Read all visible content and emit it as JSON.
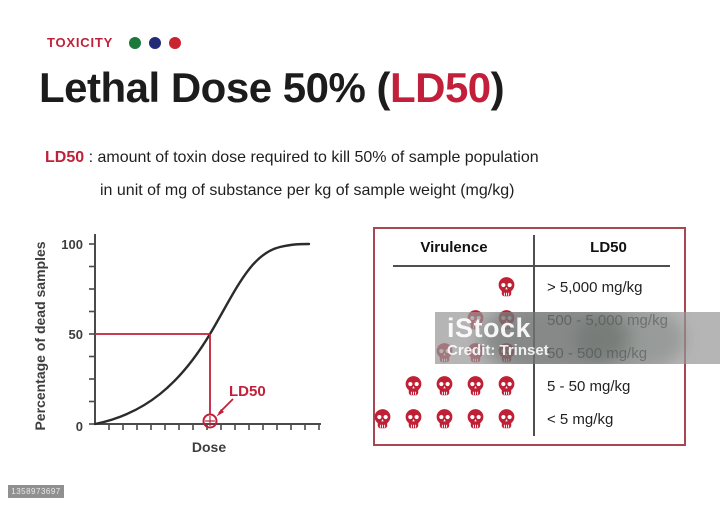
{
  "theme": {
    "accent": "#c2203a",
    "skull": "#c02036",
    "tableBorder": "#a84750",
    "curve": "#2b2b2b",
    "axis": "#4a4a4a"
  },
  "eyebrow": {
    "label": "TOXICITY",
    "dot_colors": [
      "#1b7a3a",
      "#232b77",
      "#c92231"
    ]
  },
  "title": {
    "prefix": "Lethal Dose 50% (",
    "highlight": "LD50",
    "suffix": ")"
  },
  "definition": {
    "term": "LD50",
    "separator": " : ",
    "line1": "amount of toxin dose required to kill 50% of sample population",
    "line2": "in unit of mg of substance per kg of sample weight (mg/kg)"
  },
  "chart": {
    "y_axis_label": "Percentage of dead samples",
    "x_axis_label": "Dose",
    "y_ticks": [
      "0",
      "50",
      "100"
    ],
    "annotation": "LD50"
  },
  "chart_data": [
    {
      "type": "line",
      "title": "Dose-response curve",
      "x": [
        0,
        1,
        2,
        3,
        4,
        5,
        6,
        7,
        8,
        9,
        10
      ],
      "series": [
        {
          "name": "Percentage of dead samples",
          "values": [
            0,
            6,
            13,
            22,
            34,
            50,
            67,
            82,
            92,
            98,
            100
          ]
        }
      ],
      "xlabel": "Dose",
      "ylabel": "Percentage of dead samples",
      "ylim": [
        0,
        100
      ],
      "y_ticks": [
        0,
        50,
        100
      ],
      "grid": false,
      "legend": "none",
      "annotations": [
        {
          "label": "LD50",
          "x": 5,
          "y": 0
        }
      ]
    },
    {
      "type": "table",
      "columns": [
        "Virulence",
        "LD50"
      ],
      "rows": [
        [
          "1 skull",
          "> 5,000 mg/kg"
        ],
        [
          "2 skulls",
          "500 - 5,000 mg/kg"
        ],
        [
          "3 skulls",
          "50 - 500 mg/kg"
        ],
        [
          "4 skulls",
          "5 - 50 mg/kg"
        ],
        [
          "5 skulls",
          "< 5 mg/kg"
        ]
      ]
    }
  ],
  "table": {
    "headers": [
      "Virulence",
      "LD50"
    ],
    "rows": [
      {
        "skulls": 1,
        "ld50": "> 5,000 mg/kg"
      },
      {
        "skulls": 2,
        "ld50": "500 - 5,000 mg/kg"
      },
      {
        "skulls": 3,
        "ld50": "50 - 500 mg/kg"
      },
      {
        "skulls": 4,
        "ld50": "5 - 50 mg/kg"
      },
      {
        "skulls": 5,
        "ld50": "< 5 mg/kg"
      }
    ]
  },
  "watermark": {
    "brand": "iStock",
    "credit": "Credit: Trinset",
    "id": "1358973697"
  }
}
